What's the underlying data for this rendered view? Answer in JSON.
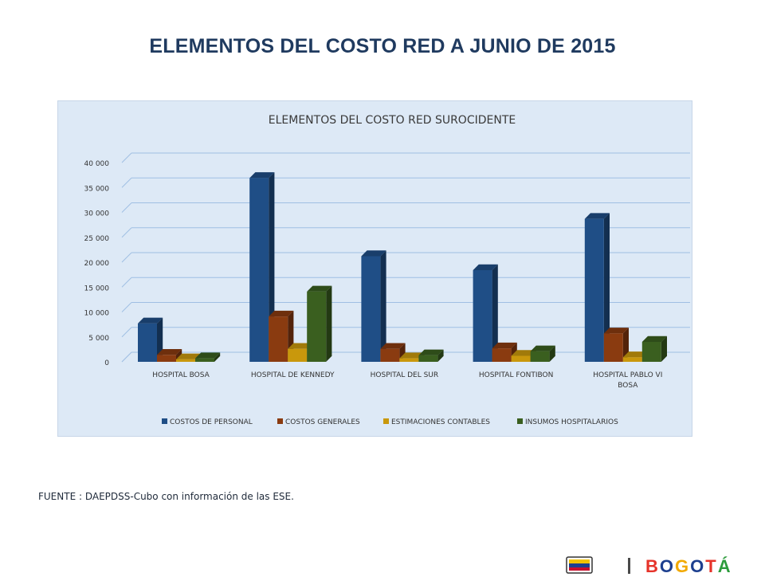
{
  "slide": {
    "title": "ELEMENTOS DEL COSTO RED A JUNIO DE 2015",
    "source": "FUENTE : DAEPDSS-Cubo con información de las ESE."
  },
  "footer": {
    "logo_text": "BOGOTÁ",
    "logo_colors": [
      "#e6332a",
      "#1d3f8f",
      "#f2a900",
      "#1d3f8f",
      "#e6332a",
      "#2d9c3c"
    ],
    "shield_icon": "colombia-shield-icon"
  },
  "chart_data": {
    "type": "bar",
    "title": "ELEMENTOS DEL COSTO RED SUROCIDENTE",
    "categories": [
      "HOSPITAL BOSA",
      "HOSPITAL DE KENNEDY",
      "HOSPITAL DEL SUR",
      "HOSPITAL FONTIBON",
      "HOSPITAL PABLO VI BOSA"
    ],
    "series": [
      {
        "name": "COSTOS DE PERSONAL",
        "color": "#1f4e86",
        "values": [
          7700,
          36900,
          21200,
          18400,
          28700
        ]
      },
      {
        "name": "COSTOS GENERALES",
        "color": "#8a3b10",
        "values": [
          1400,
          9100,
          2600,
          2700,
          5700
        ]
      },
      {
        "name": "ESTIMACIONES CONTABLES",
        "color": "#c9980c",
        "values": [
          500,
          2600,
          700,
          1200,
          900
        ]
      },
      {
        "name": "INSUMOS HOSPITALARIOS",
        "color": "#3a5f1f",
        "values": [
          700,
          14100,
          1300,
          2100,
          4000
        ]
      }
    ],
    "yticks": [
      "0",
      "5 000",
      "10 000",
      "15 000",
      "20 000",
      "25 000",
      "30 000",
      "35 000",
      "40 000"
    ],
    "ylim": [
      0,
      40000
    ],
    "grid": true,
    "legend": "bottom",
    "style": "3d-clustered"
  }
}
